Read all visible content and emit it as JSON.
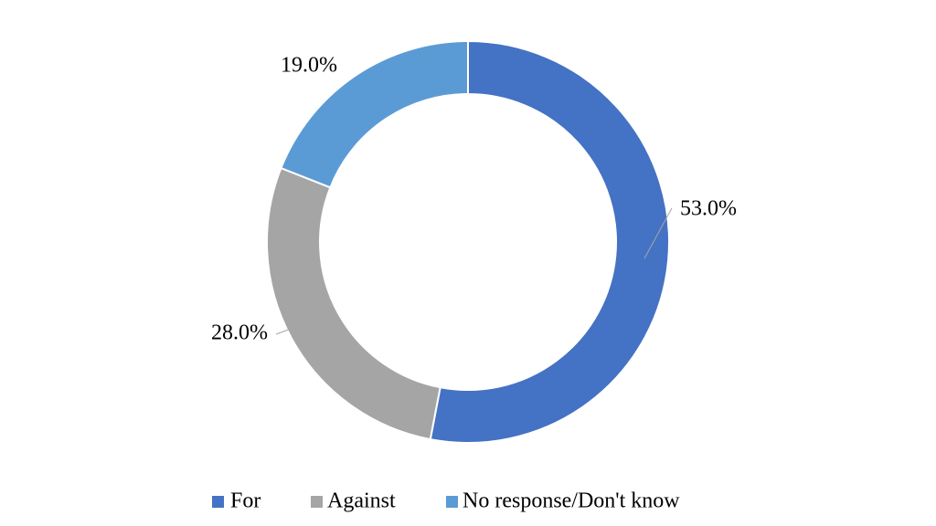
{
  "chart_data": {
    "type": "donut",
    "categories": [
      "For",
      "Against",
      "No response/Don't know"
    ],
    "values": [
      53,
      28,
      19
    ],
    "value_labels": [
      "53.0%",
      "28.0%",
      "19.0%"
    ],
    "colors": [
      "#4472c4",
      "#a5a5a5",
      "#5b9bd5"
    ],
    "legend": "bottom"
  }
}
